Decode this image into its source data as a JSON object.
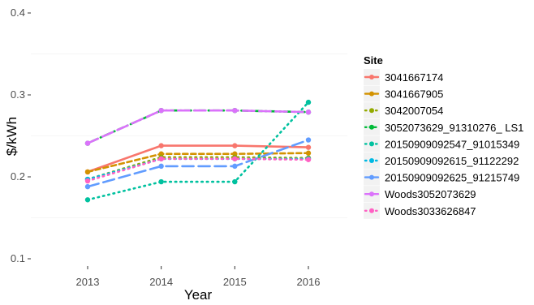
{
  "chart_data": {
    "type": "line",
    "title": "",
    "xlabel": "Year",
    "ylabel": "$/kWh",
    "x": [
      2013,
      2014,
      2015,
      2016
    ],
    "x_tick_labels": [
      "2013",
      "2014",
      "2015",
      "2016"
    ],
    "y_ticks": [
      0.1,
      0.2,
      0.3,
      0.4
    ],
    "y_tick_labels": [
      "0.1",
      "0.2",
      "0.3",
      "0.4"
    ],
    "ylim": [
      0.1,
      0.4
    ],
    "grid": true,
    "legend_title": "Site",
    "legend_position": "right",
    "series": [
      {
        "name": "3041667174",
        "color": "#F8766D",
        "dash": "solid",
        "values": [
          0.206,
          0.238,
          0.238,
          0.236
        ]
      },
      {
        "name": "3041667905",
        "color": "#D39200",
        "dash": "dashed",
        "values": [
          0.206,
          0.228,
          0.228,
          0.229
        ]
      },
      {
        "name": "3042007054",
        "color": "#93AA00",
        "dash": "dotted",
        "values": [
          0.197,
          0.224,
          0.224,
          0.223
        ]
      },
      {
        "name": "3052073629_91310276_ LS1",
        "color": "#00BA38",
        "dash": "dotdash",
        "values": [
          0.241,
          0.281,
          0.281,
          0.279
        ]
      },
      {
        "name": "20150909092547_91015349",
        "color": "#00C19F",
        "dash": "dotted",
        "values": [
          0.172,
          0.194,
          0.194,
          0.291
        ]
      },
      {
        "name": "20150909092615_91122292",
        "color": "#00B9E3",
        "dash": "dotted",
        "values": [
          0.197,
          0.222,
          0.222,
          0.222
        ]
      },
      {
        "name": "20150909092625_91215749",
        "color": "#619CFF",
        "dash": "longdash",
        "values": [
          0.188,
          0.213,
          0.213,
          0.245
        ]
      },
      {
        "name": "Woods3052073629",
        "color": "#DB72FB",
        "dash": "longdash",
        "values": [
          0.241,
          0.281,
          0.281,
          0.279
        ]
      },
      {
        "name": "Woods3033626847",
        "color": "#FF61C3",
        "dash": "dotted",
        "values": [
          0.195,
          0.222,
          0.222,
          0.221
        ]
      }
    ]
  }
}
